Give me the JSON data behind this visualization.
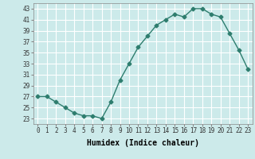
{
  "x": [
    0,
    1,
    2,
    3,
    4,
    5,
    6,
    7,
    8,
    9,
    10,
    11,
    12,
    13,
    14,
    15,
    16,
    17,
    18,
    19,
    20,
    21,
    22,
    23
  ],
  "y": [
    27,
    27,
    26,
    25,
    24,
    23.5,
    23.5,
    23,
    26,
    30,
    33,
    36,
    38,
    40,
    41,
    42,
    41.5,
    43,
    43,
    42,
    41.5,
    38.5,
    35.5,
    32
  ],
  "line_color": "#2e7d6e",
  "marker": "D",
  "marker_size": 2.5,
  "bg_color": "#cceaea",
  "grid_color": "#ffffff",
  "xlabel": "Humidex (Indice chaleur)",
  "xlabel_fontsize": 7,
  "tick_fontsize": 5.5,
  "ylabel_ticks": [
    23,
    25,
    27,
    29,
    31,
    33,
    35,
    37,
    39,
    41,
    43
  ],
  "ylim": [
    22,
    44
  ],
  "xlim": [
    -0.5,
    23.5
  ]
}
